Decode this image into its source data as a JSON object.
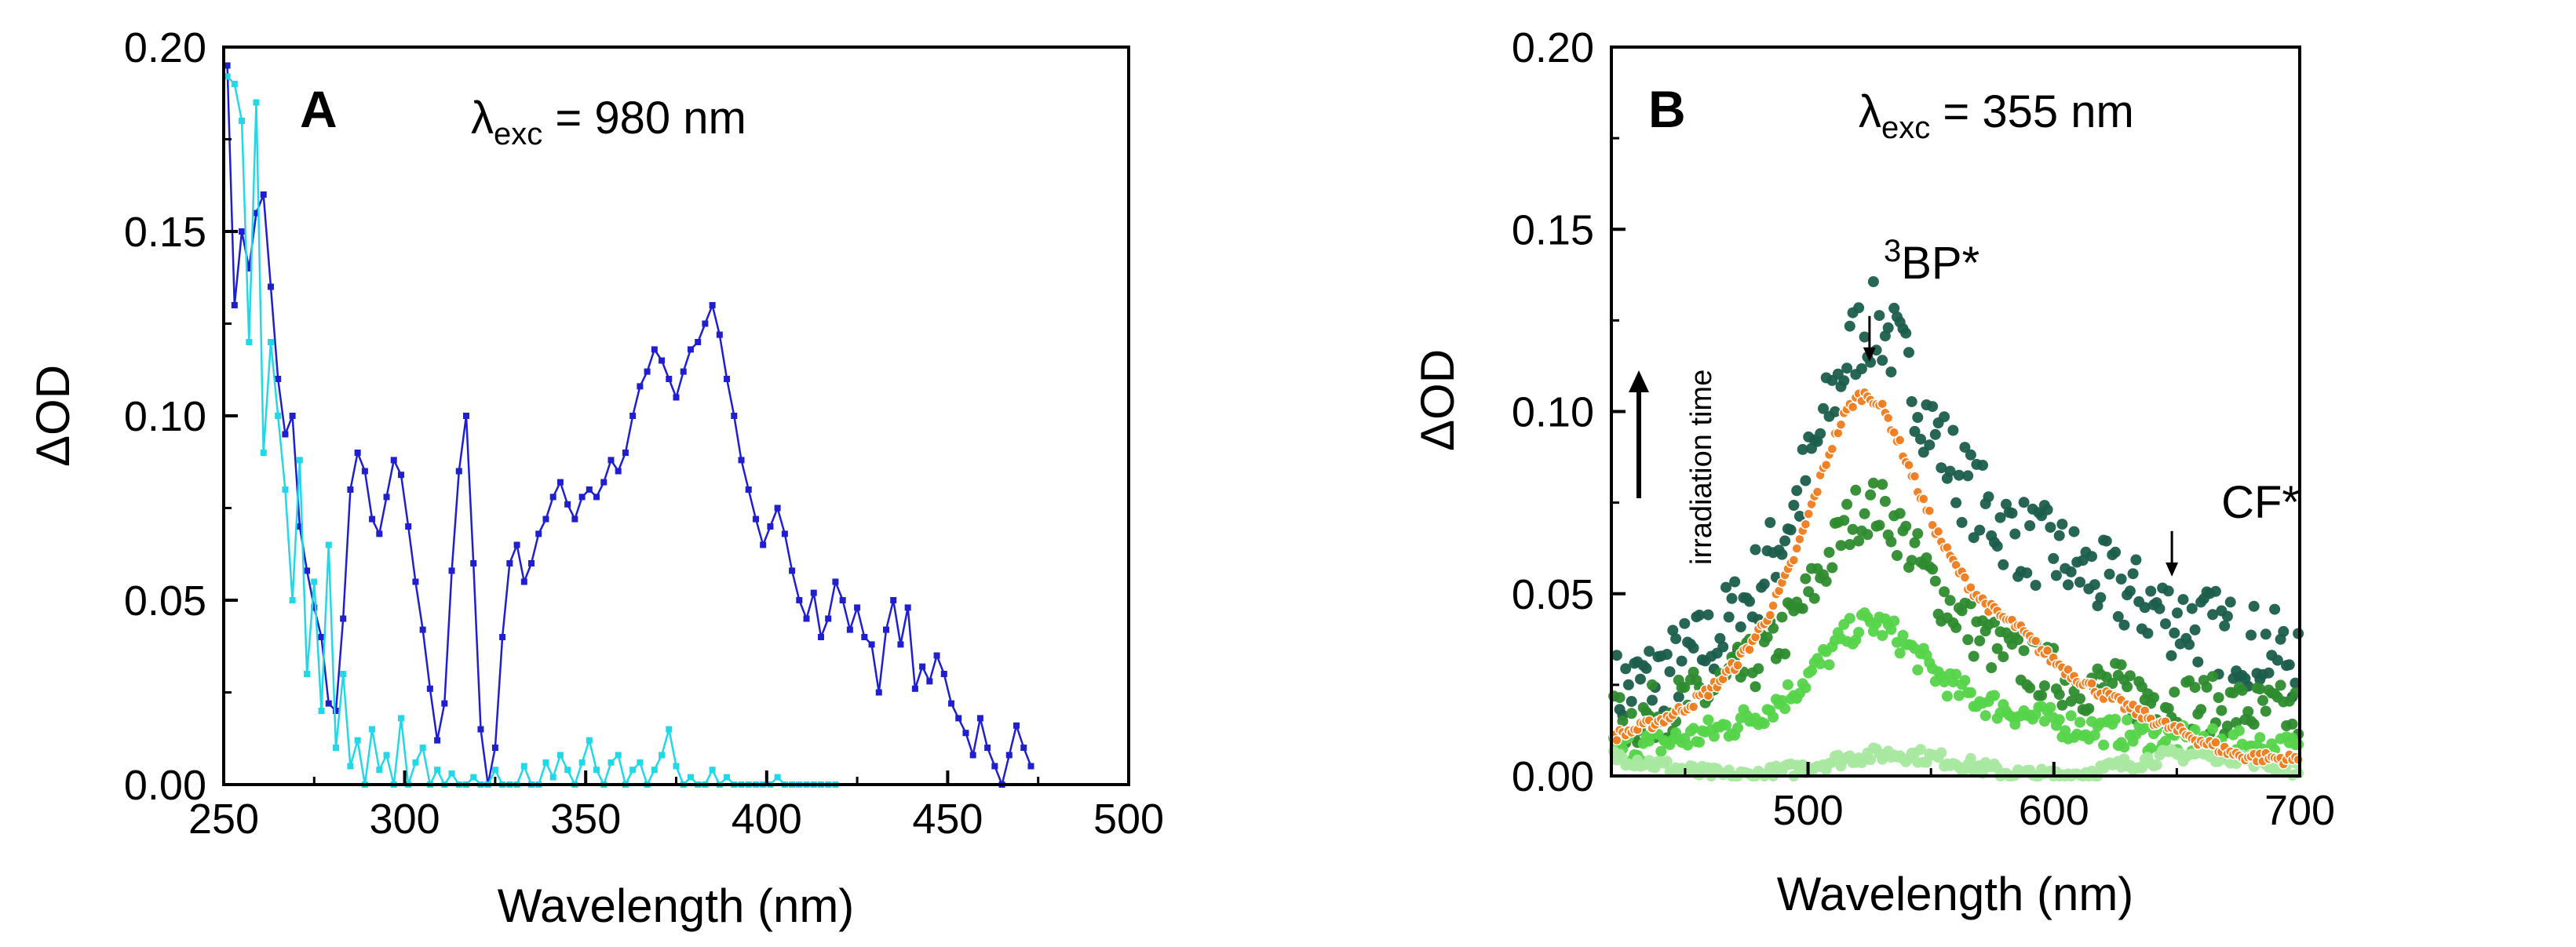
{
  "chart_data": [
    {
      "type": "scatter",
      "panel_label": "A",
      "annotation": {
        "lambda": "λ",
        "sub": "exc",
        "value": " = 980 nm"
      },
      "xlabel": "Wavelength (nm)",
      "ylabel": "ΔOD",
      "xlim": [
        250,
        500
      ],
      "ylim": [
        0,
        0.2
      ],
      "xticks": [
        "250",
        "300",
        "350",
        "400",
        "450",
        "500"
      ],
      "yticks": [
        "0.00",
        "0.05",
        "0.10",
        "0.15",
        "0.20"
      ],
      "series": [
        {
          "name": "blue",
          "color": "#1f1fd0",
          "x": [
            251,
            253,
            255,
            257,
            259,
            261,
            263,
            265,
            267,
            269,
            271,
            273,
            275,
            277,
            279,
            281,
            283,
            285,
            287,
            289,
            291,
            293,
            295,
            297,
            299,
            301,
            303,
            305,
            307,
            309,
            311,
            313,
            315,
            317,
            319,
            321,
            323,
            325,
            327,
            329,
            331,
            333,
            335,
            337,
            339,
            341,
            343,
            345,
            347,
            349,
            351,
            353,
            355,
            357,
            359,
            361,
            363,
            365,
            367,
            369,
            371,
            373,
            375,
            377,
            379,
            381,
            383,
            385,
            387,
            389,
            391,
            393,
            395,
            397,
            399,
            401,
            403,
            405,
            407,
            409,
            411,
            413,
            415,
            417,
            419,
            421,
            423,
            425,
            427,
            429,
            431,
            433,
            435,
            437,
            439,
            441,
            443,
            445,
            447,
            449,
            451,
            453,
            455,
            457,
            459,
            461,
            463,
            465,
            467,
            469,
            471,
            473
          ],
          "y": [
            0.195,
            0.13,
            0.15,
            0.14,
            0.155,
            0.16,
            0.135,
            0.11,
            0.095,
            0.1,
            0.07,
            0.058,
            0.048,
            0.04,
            0.022,
            0.02,
            0.045,
            0.08,
            0.09,
            0.085,
            0.072,
            0.068,
            0.078,
            0.088,
            0.084,
            0.07,
            0.055,
            0.042,
            0.026,
            0.012,
            0.022,
            0.058,
            0.085,
            0.1,
            0.06,
            0.015,
            0.0,
            0.01,
            0.04,
            0.06,
            0.065,
            0.055,
            0.06,
            0.068,
            0.072,
            0.078,
            0.082,
            0.076,
            0.072,
            0.078,
            0.08,
            0.078,
            0.082,
            0.088,
            0.085,
            0.09,
            0.1,
            0.108,
            0.112,
            0.118,
            0.115,
            0.11,
            0.105,
            0.112,
            0.118,
            0.12,
            0.125,
            0.13,
            0.122,
            0.11,
            0.1,
            0.088,
            0.08,
            0.072,
            0.065,
            0.07,
            0.075,
            0.068,
            0.058,
            0.05,
            0.045,
            0.052,
            0.04,
            0.045,
            0.055,
            0.05,
            0.042,
            0.048,
            0.04,
            0.038,
            0.025,
            0.042,
            0.05,
            0.038,
            0.048,
            0.026,
            0.032,
            0.028,
            0.035,
            0.03,
            0.022,
            0.018,
            0.014,
            0.008,
            0.018,
            0.01,
            0.005,
            0.0,
            0.008,
            0.016,
            0.01,
            0.005
          ]
        },
        {
          "name": "cyan",
          "color": "#22d8e6",
          "x": [
            251,
            253,
            255,
            257,
            259,
            261,
            263,
            265,
            267,
            269,
            271,
            273,
            275,
            277,
            279,
            281,
            283,
            285,
            287,
            289,
            291,
            293,
            295,
            297,
            299,
            301,
            303,
            305,
            307,
            309,
            311,
            313,
            315,
            317,
            319,
            321,
            323,
            325,
            327,
            329,
            331,
            333,
            335,
            337,
            339,
            341,
            343,
            345,
            347,
            349,
            351,
            353,
            355,
            357,
            359,
            361,
            363,
            365,
            367,
            369,
            371,
            373,
            375,
            377,
            379,
            381,
            383,
            385,
            387,
            389,
            391,
            393,
            395,
            397,
            399,
            401,
            403,
            405,
            407,
            409,
            411,
            413,
            415,
            417,
            419
          ],
          "y": [
            0.192,
            0.19,
            0.18,
            0.12,
            0.185,
            0.09,
            0.12,
            0.1,
            0.08,
            0.05,
            0.088,
            0.03,
            0.055,
            0.02,
            0.065,
            0.01,
            0.03,
            0.005,
            0.012,
            0.0,
            0.015,
            0.004,
            0.008,
            0.0,
            0.018,
            0.0,
            0.006,
            0.01,
            0.0,
            0.004,
            0.0,
            0.003,
            0.0,
            0.0,
            0.002,
            0.0,
            0.0,
            0.004,
            0.0,
            0.0,
            0.0,
            0.005,
            0.0,
            0.0,
            0.006,
            0.002,
            0.008,
            0.004,
            0.0,
            0.006,
            0.012,
            0.004,
            0.0,
            0.006,
            0.008,
            0.0,
            0.004,
            0.006,
            0.0,
            0.004,
            0.008,
            0.015,
            0.005,
            0.0,
            0.002,
            0.0,
            0.0,
            0.004,
            0.0,
            0.002,
            0.0,
            0.0,
            0.0,
            0.0,
            0.0,
            0.0,
            0.002,
            0.0,
            0.0,
            0.0,
            0.0,
            0.0,
            0.0,
            0.0,
            0.0
          ]
        }
      ]
    },
    {
      "type": "scatter",
      "panel_label": "B",
      "annotation": {
        "lambda": "λ",
        "sub": "exc",
        "value": " = 355 nm"
      },
      "xlabel": "Wavelength (nm)",
      "ylabel": "ΔOD",
      "xlim": [
        420,
        700
      ],
      "ylim": [
        0,
        0.2
      ],
      "xticks": [
        "500",
        "600",
        "700"
      ],
      "yticks": [
        "0.00",
        "0.05",
        "0.10",
        "0.15",
        "0.20"
      ],
      "arrow_label": "irradiation time",
      "peak_labels": [
        {
          "sup": "3",
          "text": "BP*",
          "x": 525,
          "y_arrow": 0.112
        },
        {
          "sup": "",
          "text": "CF*",
          "x": 648,
          "y_arrow": 0.053
        }
      ],
      "series": [
        {
          "name": "darkest-green",
          "color": "#1b5e4b",
          "curve": "dark"
        },
        {
          "name": "dark-green",
          "color": "#2e8b2e",
          "curve": "mid"
        },
        {
          "name": "light-green",
          "color": "#55d44a",
          "curve": "light"
        },
        {
          "name": "pale-green",
          "color": "#a8e8a0",
          "curve": "pale"
        },
        {
          "name": "orange",
          "color": "#f07d1e",
          "curve": "orange"
        }
      ]
    }
  ]
}
